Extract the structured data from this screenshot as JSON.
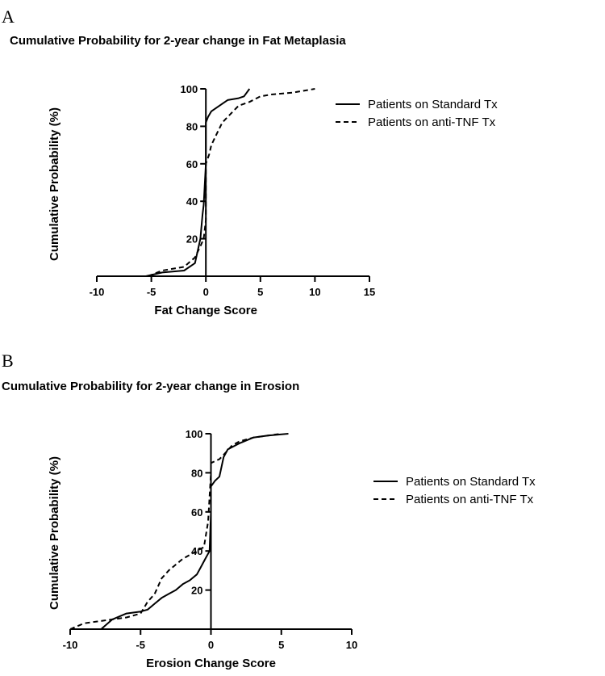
{
  "panels": [
    {
      "letter": "A",
      "title": "Cumulative Probability for 2-year change in Fat Metaplasia"
    },
    {
      "letter": "B",
      "title": "Cumulative Probability for 2-year change in Erosion"
    }
  ],
  "chart_data": [
    {
      "type": "line",
      "title": "Cumulative Probability for 2-year change in Fat Metaplasia",
      "xlabel": "Fat Change Score",
      "ylabel": "Cumulative Probability (%)",
      "xlim": [
        -10,
        15
      ],
      "ylim": [
        0,
        100
      ],
      "xticks": [
        -10,
        -5,
        0,
        5,
        10,
        15
      ],
      "yticks": [
        20,
        40,
        60,
        80,
        100
      ],
      "grid": false,
      "legend": "right",
      "series": [
        {
          "name": "Patients on Standard Tx",
          "style": "solid",
          "x": [
            -5.5,
            -4,
            -2,
            -1,
            -0.5,
            -0.3,
            -0.2,
            0,
            0,
            0.2,
            0.5,
            1,
            2,
            3,
            3.5,
            4
          ],
          "y": [
            0,
            2,
            3,
            7,
            20,
            33,
            38,
            60,
            82,
            85,
            88,
            90,
            94,
            95,
            96,
            100
          ]
        },
        {
          "name": "Patients on anti-TNF Tx",
          "style": "dashed",
          "x": [
            -5.3,
            -4,
            -2,
            -1,
            -0.5,
            -0.2,
            0,
            0,
            0.3,
            0.5,
            1,
            1.5,
            2,
            2.5,
            3,
            4,
            5,
            6,
            8,
            10
          ],
          "y": [
            0,
            3,
            5,
            10,
            16,
            20,
            30,
            60,
            65,
            70,
            76,
            82,
            85,
            88,
            91,
            93,
            96,
            97,
            98,
            100
          ]
        }
      ]
    },
    {
      "type": "line",
      "title": "Cumulative Probability for 2-year change in Erosion",
      "xlabel": "Erosion Change Score",
      "ylabel": "Cumulative Probability (%)",
      "xlim": [
        -10,
        10
      ],
      "ylim": [
        0,
        100
      ],
      "xticks": [
        -10,
        -5,
        0,
        5,
        10
      ],
      "yticks": [
        20,
        40,
        60,
        80,
        100
      ],
      "grid": false,
      "legend": "right",
      "series": [
        {
          "name": "Patients on Standard Tx",
          "style": "solid",
          "x": [
            -7.8,
            -7,
            -6,
            -5,
            -4.5,
            -4,
            -3.5,
            -3,
            -2.5,
            -2,
            -1.5,
            -1,
            -0.7,
            -0.4,
            -0.1,
            0,
            0,
            0.3,
            0.6,
            0.9,
            1.2,
            2,
            3,
            4,
            5.5
          ],
          "y": [
            0,
            5,
            8,
            9,
            10,
            13,
            16,
            18,
            20,
            23,
            25,
            28,
            32,
            36,
            40,
            60,
            73,
            76,
            78,
            88,
            92,
            95,
            98,
            99,
            100
          ]
        },
        {
          "name": "Patients on anti-TNF Tx",
          "style": "dashed",
          "x": [
            -10,
            -9,
            -8,
            -7,
            -6,
            -5,
            -4.5,
            -4,
            -3.5,
            -3,
            -2.5,
            -2,
            -1.5,
            -1,
            -0.5,
            -0.2,
            0,
            0,
            0.3,
            0.6,
            1,
            1.5,
            2,
            3,
            4,
            5
          ],
          "y": [
            0,
            3,
            4,
            5,
            6,
            8,
            14,
            18,
            26,
            30,
            33,
            36,
            38,
            40,
            42,
            55,
            80,
            85,
            86,
            87,
            90,
            94,
            96,
            98,
            99,
            100
          ]
        }
      ]
    }
  ]
}
